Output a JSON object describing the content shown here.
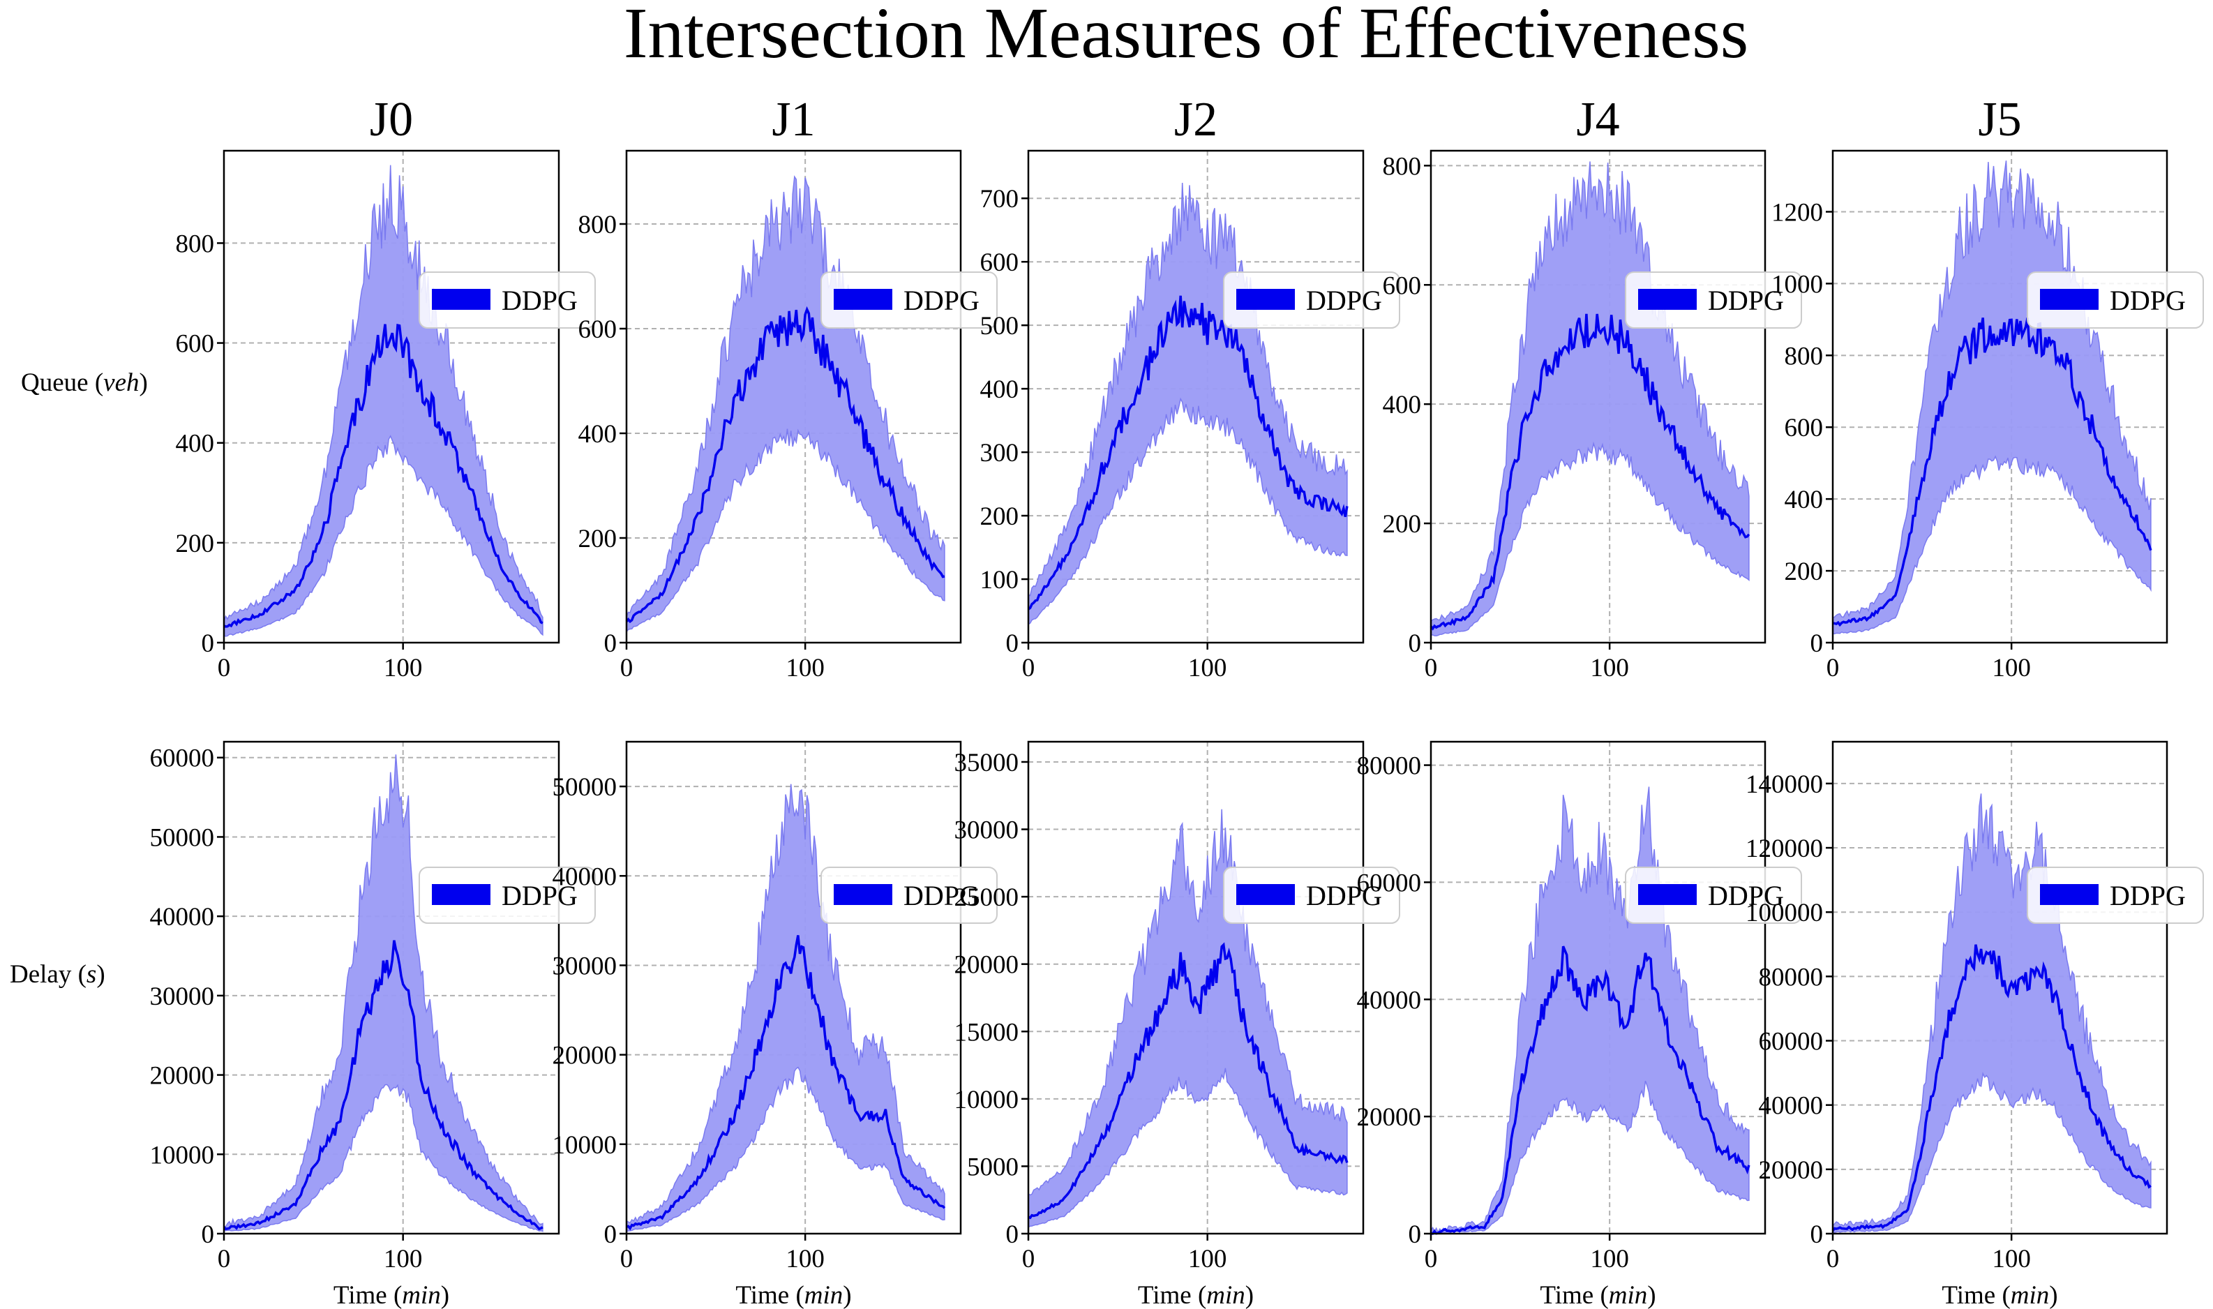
{
  "figure": {
    "title": "Intersection Measures of Effectiveness",
    "row_labels": [
      {
        "text": "Queue",
        "unit": "veh"
      },
      {
        "text": "Delay",
        "unit": "s"
      }
    ],
    "x_label": {
      "text": "Time",
      "unit": "min"
    },
    "legend_label": "DDPG",
    "colors": {
      "line": "#0000ee",
      "band": "#9a9af5",
      "band_edge": "#7a7af0",
      "grid": "#b0b0b0"
    }
  },
  "chart_data": [
    {
      "type": "line",
      "junction": "J0",
      "metric": "Queue",
      "xlabel": "",
      "ylabel": "Queue (veh)",
      "xlim": [
        0,
        187
      ],
      "ylim": [
        0,
        985
      ],
      "xticks": [
        0,
        100
      ],
      "yticks": [
        0,
        200,
        400,
        600,
        800
      ],
      "grid": true,
      "legend": "right",
      "series": [
        {
          "name": "DDPG",
          "shape": [
            [
              0,
              0.02
            ],
            [
              20,
              0.06
            ],
            [
              40,
              0.14
            ],
            [
              55,
              0.32
            ],
            [
              65,
              0.55
            ],
            [
              75,
              0.75
            ],
            [
              85,
              0.93
            ],
            [
              95,
              1.0
            ],
            [
              105,
              0.88
            ],
            [
              115,
              0.76
            ],
            [
              125,
              0.64
            ],
            [
              135,
              0.5
            ],
            [
              145,
              0.36
            ],
            [
              155,
              0.22
            ],
            [
              165,
              0.12
            ],
            [
              175,
              0.06
            ],
            [
              177,
              0.03
            ]
          ],
          "mean_peak": 625,
          "upper_peak": 900,
          "lower_peak": 400,
          "start": [
            20,
            30,
            5
          ]
        }
      ]
    },
    {
      "type": "line",
      "junction": "J1",
      "metric": "Queue",
      "xlabel": "",
      "ylabel": "",
      "xlim": [
        0,
        187
      ],
      "ylim": [
        0,
        940
      ],
      "xticks": [
        0,
        100
      ],
      "yticks": [
        0,
        200,
        400,
        600,
        800
      ],
      "grid": true,
      "legend": "right",
      "series": [
        {
          "name": "DDPG",
          "shape": [
            [
              0,
              0.03
            ],
            [
              20,
              0.12
            ],
            [
              40,
              0.36
            ],
            [
              60,
              0.72
            ],
            [
              80,
              0.92
            ],
            [
              100,
              0.98
            ],
            [
              110,
              0.88
            ],
            [
              125,
              0.72
            ],
            [
              140,
              0.52
            ],
            [
              155,
              0.36
            ],
            [
              170,
              0.22
            ],
            [
              178,
              0.18
            ]
          ],
          "mean_peak": 630,
          "upper_peak": 860,
          "lower_peak": 410,
          "start": [
            20,
            30,
            10
          ]
        }
      ]
    },
    {
      "type": "line",
      "junction": "J2",
      "metric": "Queue",
      "xlabel": "",
      "ylabel": "",
      "xlim": [
        0,
        187
      ],
      "ylim": [
        0,
        775
      ],
      "xticks": [
        0,
        100
      ],
      "yticks": [
        0,
        100,
        200,
        300,
        400,
        500,
        600,
        700
      ],
      "grid": true,
      "legend": "right",
      "series": [
        {
          "name": "DDPG",
          "shape": [
            [
              0,
              0.05
            ],
            [
              15,
              0.16
            ],
            [
              30,
              0.32
            ],
            [
              50,
              0.6
            ],
            [
              70,
              0.84
            ],
            [
              85,
              0.98
            ],
            [
              100,
              0.92
            ],
            [
              115,
              0.88
            ],
            [
              130,
              0.66
            ],
            [
              145,
              0.44
            ],
            [
              160,
              0.38
            ],
            [
              178,
              0.35
            ]
          ],
          "mean_peak": 540,
          "upper_peak": 700,
          "lower_peak": 380,
          "start": [
            25,
            40,
            10
          ]
        }
      ]
    },
    {
      "type": "line",
      "junction": "J4",
      "metric": "Queue",
      "xlabel": "",
      "ylabel": "",
      "xlim": [
        0,
        187
      ],
      "ylim": [
        0,
        825
      ],
      "xticks": [
        0,
        100
      ],
      "yticks": [
        0,
        200,
        400,
        600,
        800
      ],
      "grid": true,
      "legend": "right",
      "series": [
        {
          "name": "DDPG",
          "shape": [
            [
              0,
              0.02
            ],
            [
              20,
              0.05
            ],
            [
              35,
              0.18
            ],
            [
              45,
              0.5
            ],
            [
              55,
              0.75
            ],
            [
              70,
              0.92
            ],
            [
              90,
              1.0
            ],
            [
              110,
              0.96
            ],
            [
              130,
              0.7
            ],
            [
              150,
              0.5
            ],
            [
              165,
              0.38
            ],
            [
              178,
              0.32
            ]
          ],
          "mean_peak": 530,
          "upper_peak": 760,
          "lower_peak": 320,
          "start": [
            15,
            20,
            5
          ]
        }
      ]
    },
    {
      "type": "line",
      "junction": "J5",
      "metric": "Queue",
      "xlabel": "",
      "ylabel": "",
      "xlim": [
        0,
        187
      ],
      "ylim": [
        0,
        1370
      ],
      "xticks": [
        0,
        100
      ],
      "yticks": [
        0,
        200,
        400,
        600,
        800,
        1000,
        1200
      ],
      "grid": true,
      "legend": "right",
      "series": [
        {
          "name": "DDPG",
          "shape": [
            [
              0,
              0.03
            ],
            [
              20,
              0.05
            ],
            [
              35,
              0.12
            ],
            [
              48,
              0.45
            ],
            [
              58,
              0.7
            ],
            [
              70,
              0.9
            ],
            [
              90,
              1.0
            ],
            [
              110,
              0.98
            ],
            [
              125,
              0.94
            ],
            [
              135,
              0.82
            ],
            [
              150,
              0.6
            ],
            [
              165,
              0.42
            ],
            [
              178,
              0.28
            ]
          ],
          "mean_peak": 880,
          "upper_peak": 1260,
          "lower_peak": 500,
          "start": [
            25,
            35,
            10
          ]
        }
      ]
    },
    {
      "type": "line",
      "junction": "J0",
      "metric": "Delay",
      "xlabel": "Time (min)",
      "ylabel": "Delay (s)",
      "xlim": [
        0,
        187
      ],
      "ylim": [
        0,
        62000
      ],
      "xticks": [
        0,
        100
      ],
      "yticks": [
        0,
        10000,
        20000,
        30000,
        40000,
        50000,
        60000
      ],
      "grid": true,
      "legend": "right",
      "series": [
        {
          "name": "DDPG",
          "shape": [
            [
              0,
              0.01
            ],
            [
              20,
              0.03
            ],
            [
              40,
              0.1
            ],
            [
              55,
              0.3
            ],
            [
              65,
              0.4
            ],
            [
              75,
              0.7
            ],
            [
              85,
              0.9
            ],
            [
              95,
              1.0
            ],
            [
              103,
              0.9
            ],
            [
              110,
              0.55
            ],
            [
              120,
              0.4
            ],
            [
              135,
              0.25
            ],
            [
              150,
              0.14
            ],
            [
              165,
              0.06
            ],
            [
              177,
              0.01
            ]
          ],
          "mean_peak": 35000,
          "upper_peak": 57000,
          "lower_peak": 19000,
          "start": [
            300,
            600,
            100
          ]
        }
      ]
    },
    {
      "type": "line",
      "junction": "J1",
      "metric": "Delay",
      "xlabel": "Time (min)",
      "ylabel": "",
      "xlim": [
        0,
        187
      ],
      "ylim": [
        0,
        55000
      ],
      "xticks": [
        0,
        100
      ],
      "yticks": [
        0,
        10000,
        20000,
        30000,
        40000,
        50000
      ],
      "grid": true,
      "legend": "right",
      "series": [
        {
          "name": "DDPG",
          "shape": [
            [
              0,
              0.01
            ],
            [
              20,
              0.05
            ],
            [
              40,
              0.18
            ],
            [
              60,
              0.4
            ],
            [
              75,
              0.66
            ],
            [
              85,
              0.88
            ],
            [
              97,
              1.0
            ],
            [
              105,
              0.85
            ],
            [
              115,
              0.6
            ],
            [
              130,
              0.4
            ],
            [
              145,
              0.42
            ],
            [
              155,
              0.18
            ],
            [
              178,
              0.08
            ]
          ],
          "mean_peak": 32000,
          "upper_peak": 50000,
          "lower_peak": 18000,
          "start": [
            300,
            600,
            100
          ]
        }
      ]
    },
    {
      "type": "line",
      "junction": "J2",
      "metric": "Delay",
      "xlabel": "Time (min)",
      "ylabel": "",
      "xlim": [
        0,
        187
      ],
      "ylim": [
        0,
        36500
      ],
      "xticks": [
        0,
        100
      ],
      "yticks": [
        0,
        5000,
        10000,
        15000,
        20000,
        25000,
        30000,
        35000
      ],
      "grid": true,
      "legend": "right",
      "series": [
        {
          "name": "DDPG",
          "shape": [
            [
              0,
              0.03
            ],
            [
              20,
              0.1
            ],
            [
              40,
              0.3
            ],
            [
              60,
              0.6
            ],
            [
              75,
              0.8
            ],
            [
              85,
              0.95
            ],
            [
              95,
              0.8
            ],
            [
              110,
              1.0
            ],
            [
              120,
              0.75
            ],
            [
              135,
              0.5
            ],
            [
              150,
              0.28
            ],
            [
              165,
              0.26
            ],
            [
              178,
              0.24
            ]
          ],
          "mean_peak": 21000,
          "upper_peak": 30000,
          "lower_peak": 12000,
          "start": [
            500,
            2000,
            100
          ]
        }
      ]
    },
    {
      "type": "line",
      "junction": "J4",
      "metric": "Delay",
      "xlabel": "Time (min)",
      "ylabel": "",
      "xlim": [
        0,
        187
      ],
      "ylim": [
        0,
        84000
      ],
      "xticks": [
        0,
        100
      ],
      "yticks": [
        0,
        20000,
        40000,
        60000,
        80000
      ],
      "grid": true,
      "legend": "right",
      "series": [
        {
          "name": "DDPG",
          "shape": [
            [
              0,
              0.0
            ],
            [
              30,
              0.02
            ],
            [
              40,
              0.12
            ],
            [
              50,
              0.5
            ],
            [
              60,
              0.72
            ],
            [
              75,
              0.95
            ],
            [
              85,
              0.78
            ],
            [
              95,
              0.88
            ],
            [
              110,
              0.7
            ],
            [
              120,
              1.0
            ],
            [
              130,
              0.72
            ],
            [
              145,
              0.5
            ],
            [
              160,
              0.3
            ],
            [
              178,
              0.22
            ]
          ],
          "mean_peak": 50000,
          "upper_peak": 75000,
          "lower_peak": 25000,
          "start": [
            200,
            500,
            50
          ]
        }
      ]
    },
    {
      "type": "line",
      "junction": "J5",
      "metric": "Delay",
      "xlabel": "Time (min)",
      "ylabel": "",
      "xlim": [
        0,
        187
      ],
      "ylim": [
        0,
        153000
      ],
      "xticks": [
        0,
        100
      ],
      "yticks": [
        0,
        20000,
        40000,
        60000,
        80000,
        100000,
        120000,
        140000
      ],
      "grid": true,
      "legend": "right",
      "series": [
        {
          "name": "DDPG",
          "shape": [
            [
              0,
              0.01
            ],
            [
              30,
              0.02
            ],
            [
              42,
              0.08
            ],
            [
              50,
              0.3
            ],
            [
              60,
              0.62
            ],
            [
              70,
              0.85
            ],
            [
              85,
              1.0
            ],
            [
              100,
              0.85
            ],
            [
              115,
              0.92
            ],
            [
              125,
              0.8
            ],
            [
              140,
              0.5
            ],
            [
              155,
              0.3
            ],
            [
              168,
              0.2
            ],
            [
              178,
              0.16
            ]
          ],
          "mean_peak": 90000,
          "upper_peak": 130000,
          "lower_peak": 48000,
          "start": [
            500,
            1500,
            100
          ]
        }
      ]
    }
  ]
}
